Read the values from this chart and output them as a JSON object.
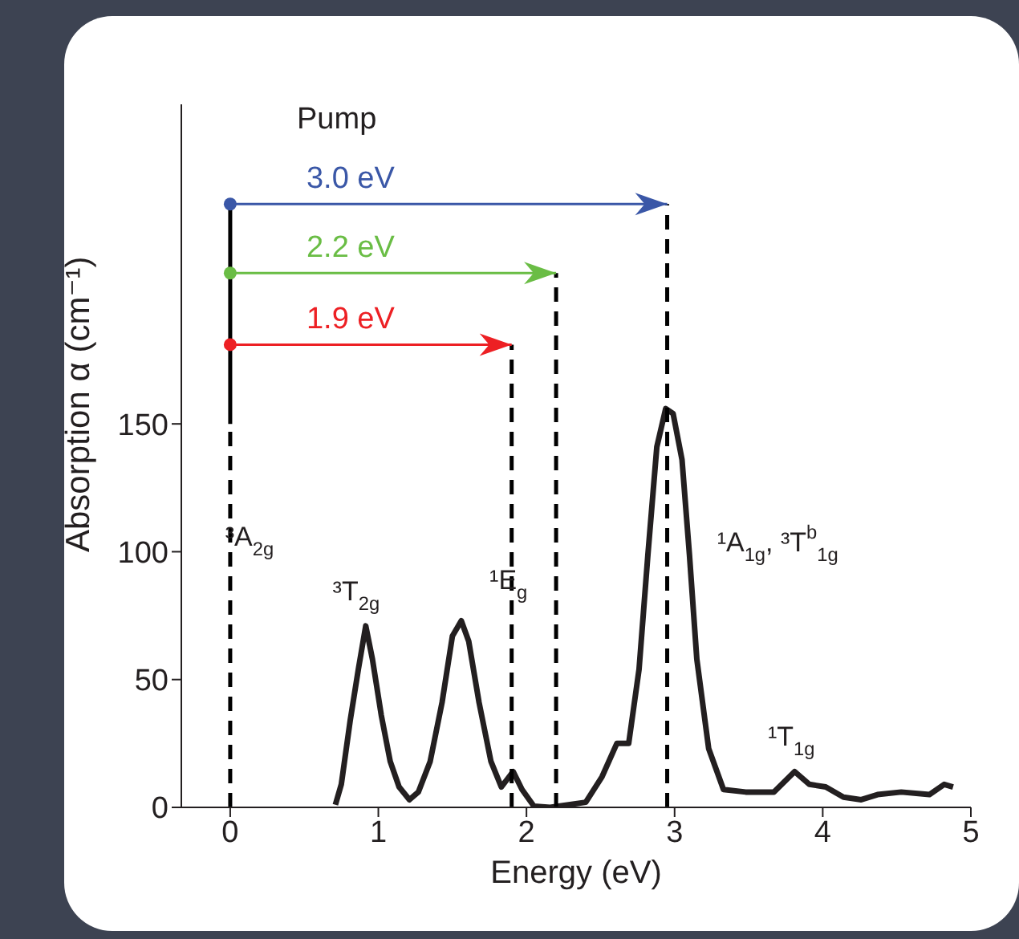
{
  "chart_data": {
    "type": "line",
    "xlabel": "Energy (eV)",
    "ylabel": "Absorption α (cm⁻¹)",
    "xlim": [
      -0.33,
      5
    ],
    "xticks": [
      0,
      1,
      2,
      3,
      4,
      5
    ],
    "ylim": [
      0,
      275
    ],
    "yticks": [
      0,
      50,
      100,
      150
    ],
    "series": [
      {
        "color": "#231f20",
        "x": [
          0.71,
          0.75,
          0.81,
          0.865,
          0.915,
          0.96,
          1.02,
          1.08,
          1.14,
          1.21,
          1.27,
          1.35,
          1.43,
          1.5,
          1.56,
          1.61,
          1.68,
          1.76,
          1.83,
          1.91,
          1.97,
          2.05,
          2.16,
          2.4,
          2.51,
          2.61,
          2.69,
          2.76,
          2.82,
          2.88,
          2.94,
          2.99,
          3.05,
          3.1,
          3.15,
          3.23,
          3.33,
          3.48,
          3.67,
          3.81,
          3.91,
          4.02,
          4.14,
          4.26,
          4.37,
          4.53,
          4.72,
          4.82,
          4.88
        ],
        "values": [
          1,
          9,
          34,
          54,
          71,
          58,
          36,
          18,
          8,
          3,
          6,
          18,
          41,
          67,
          73,
          65,
          41,
          18,
          8,
          14,
          7,
          0.5,
          0,
          2,
          12,
          25,
          25,
          54,
          99,
          141,
          156,
          154,
          136,
          99,
          58,
          23,
          7,
          6,
          6,
          14,
          9,
          8,
          4,
          3,
          5,
          6,
          5,
          9,
          8
        ]
      },
      {
        "color": "#000000",
        "line_style": "dashed",
        "x": [
          0,
          0
        ],
        "values": [
          0,
          150
        ]
      },
      {
        "color": "#000000",
        "line_style": "solid",
        "x": [
          0,
          0
        ],
        "values": [
          150,
          236
        ]
      },
      {
        "color": "#000000",
        "line_style": "dashed",
        "x": [
          1.9,
          1.9
        ],
        "values": [
          0,
          181
        ]
      },
      {
        "color": "#000000",
        "line_style": "dashed",
        "x": [
          2.2,
          2.2
        ],
        "values": [
          0,
          209
        ]
      },
      {
        "color": "#000000",
        "line_style": "dashed",
        "x": [
          2.95,
          2.95
        ],
        "values": [
          0,
          236
        ]
      },
      {
        "name": "3.0 eV",
        "color": "#3a57a7",
        "marker": "circle",
        "x": [
          0,
          2.95
        ],
        "values": [
          236,
          236
        ]
      },
      {
        "name": "2.2 eV",
        "color": "#6abd45",
        "marker": "circle",
        "x": [
          0,
          2.2
        ],
        "values": [
          209,
          209
        ]
      },
      {
        "name": "1.9 eV",
        "color": "#ed2024",
        "marker": "circle",
        "x": [
          0,
          1.9
        ],
        "values": [
          181,
          181
        ]
      }
    ],
    "annotations": [
      "Pump",
      {
        "text": "³A$_{2g}$",
        "x": 0,
        "y": 105
      },
      {
        "text": "³T$_{2g}$",
        "x": 0.915,
        "y": 71
      },
      {
        "text": "¹E$_{g}$",
        "x": 1.9,
        "y": 88
      },
      {
        "text": "¹A$_{1g}$, ³T$^{b}$$_{1g}$",
        "x": 3.1,
        "y": 99
      },
      {
        "text": "¹T$_{1g}$",
        "x": 3.81,
        "y": 14
      }
    ]
  }
}
